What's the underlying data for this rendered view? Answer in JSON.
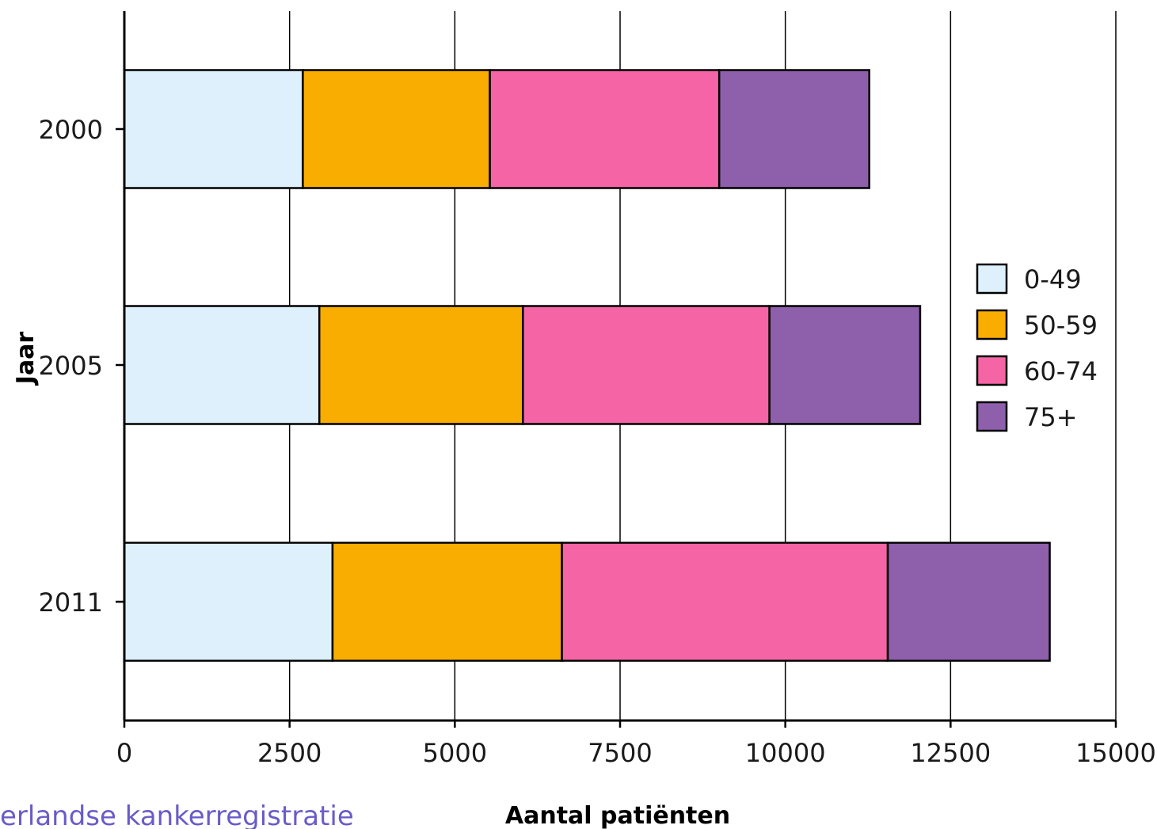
{
  "chart_data": {
    "type": "bar",
    "orientation": "horizontal",
    "stacked": true,
    "title": "",
    "xlabel": "Aantal patiënten",
    "ylabel": "Jaar",
    "categories": [
      "2000",
      "2005",
      "2011"
    ],
    "xlim": [
      0,
      15000
    ],
    "xticks": [
      "0",
      "2500",
      "5000",
      "7500",
      "10000",
      "12500",
      "15000"
    ],
    "grid": "vertical",
    "legend_position": "right",
    "series": [
      {
        "name": "0-49",
        "color": "#ddf0fb",
        "values": [
          2700,
          2950,
          3150
        ]
      },
      {
        "name": "50-59",
        "color": "#f8ad00",
        "values": [
          2830,
          3080,
          3470
        ]
      },
      {
        "name": "60-74",
        "color": "#f565a6",
        "values": [
          3470,
          3730,
          4930
        ]
      },
      {
        "name": "75+",
        "color": "#8e60ac",
        "values": [
          2270,
          2280,
          2450
        ]
      }
    ]
  },
  "footer": {
    "source_text": "erlandse kankerregistratie"
  }
}
